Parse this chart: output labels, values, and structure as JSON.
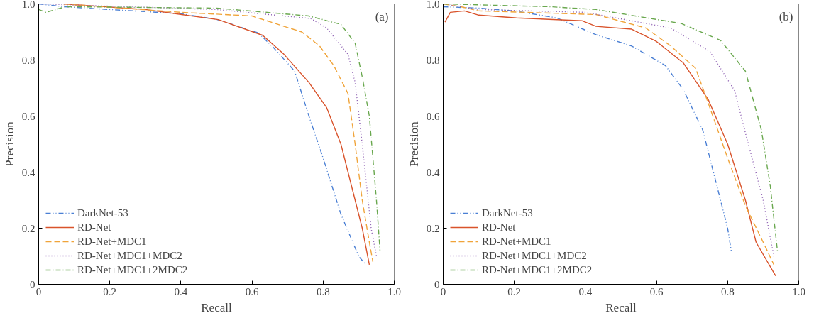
{
  "chart_data": [
    {
      "type": "line",
      "xlabel": "Recall",
      "ylabel": "Precision",
      "annotations": [
        "(a)"
      ],
      "xlim": [
        0,
        1
      ],
      "ylim": [
        0,
        1
      ],
      "xticks": [
        0,
        0.2,
        0.4,
        0.6,
        0.8,
        {
          "value": 1,
          "label": "1.0"
        }
      ],
      "yticks": [
        0,
        0.2,
        0.4,
        0.6,
        0.8,
        {
          "value": 1,
          "label": "1.0"
        }
      ],
      "grid": false,
      "legend": "bottom left",
      "series": [
        {
          "name": "DarkNet-53",
          "color": "#4a7fd4",
          "line_style": "dashdotdot",
          "x": [
            0,
            0.07,
            0.2,
            0.4,
            0.5,
            0.617,
            0.66,
            0.72,
            0.76,
            0.8,
            0.85,
            0.9,
            0.92
          ],
          "values": [
            1.0,
            0.99,
            0.98,
            0.965,
            0.945,
            0.897,
            0.845,
            0.76,
            0.6,
            0.45,
            0.25,
            0.1,
            0.07
          ]
        },
        {
          "name": "RD-Net",
          "color": "#d9532b",
          "line_style": "solid",
          "x": [
            0.07,
            0.3,
            0.505,
            0.63,
            0.69,
            0.76,
            0.81,
            0.85,
            0.88,
            0.91,
            0.93
          ],
          "values": [
            1.0,
            0.98,
            0.944,
            0.888,
            0.82,
            0.72,
            0.63,
            0.5,
            0.35,
            0.2,
            0.07
          ]
        },
        {
          "name": "RD-Net+MDC1",
          "color": "#f0a43a",
          "line_style": "dashed",
          "x": [
            0.07,
            0.4,
            0.6,
            0.69,
            0.74,
            0.79,
            0.83,
            0.87,
            0.89,
            0.91,
            0.93,
            0.94
          ],
          "values": [
            1.0,
            0.97,
            0.957,
            0.92,
            0.9,
            0.85,
            0.78,
            0.68,
            0.5,
            0.3,
            0.15,
            0.08
          ]
        },
        {
          "name": "RD-Net+MDC1+MDC2",
          "color": "#8a5bb0",
          "line_style": "dotted",
          "x": [
            0,
            0.5,
            0.765,
            0.81,
            0.87,
            0.89,
            0.91,
            0.935,
            0.95
          ],
          "values": [
            1.0,
            0.98,
            0.948,
            0.914,
            0.82,
            0.72,
            0.5,
            0.2,
            0.1
          ]
        },
        {
          "name": "RD-Net+MDC1+2MDC2",
          "color": "#6aa84f",
          "line_style": "dashdot",
          "x": [
            0,
            0.02,
            0.076,
            0.5,
            0.76,
            0.85,
            0.89,
            0.91,
            0.93,
            0.95,
            0.96
          ],
          "values": [
            0.98,
            0.97,
            0.99,
            0.985,
            0.957,
            0.927,
            0.86,
            0.74,
            0.6,
            0.3,
            0.12
          ]
        }
      ]
    },
    {
      "type": "line",
      "xlabel": "Recall",
      "ylabel": "Precision",
      "annotations": [
        "(b)"
      ],
      "xlim": [
        0,
        1
      ],
      "ylim": [
        0,
        1
      ],
      "xticks": [
        0,
        0.2,
        0.4,
        0.6,
        0.8,
        {
          "value": 1,
          "label": "1.0"
        }
      ],
      "yticks": [
        0,
        0.2,
        0.4,
        0.6,
        0.8,
        {
          "value": 1,
          "label": "1.0"
        }
      ],
      "grid": false,
      "legend": "bottom left",
      "series": [
        {
          "name": "DarkNet-53",
          "color": "#4a7fd4",
          "line_style": "dashdotdot",
          "x": [
            0,
            0.1,
            0.2,
            0.32,
            0.43,
            0.53,
            0.625,
            0.675,
            0.73,
            0.77,
            0.8,
            0.81
          ],
          "values": [
            0.99,
            0.985,
            0.975,
            0.95,
            0.89,
            0.85,
            0.78,
            0.695,
            0.55,
            0.35,
            0.2,
            0.12
          ]
        },
        {
          "name": "RD-Net",
          "color": "#d9532b",
          "line_style": "solid",
          "x": [
            0.005,
            0.02,
            0.06,
            0.1,
            0.206,
            0.39,
            0.43,
            0.53,
            0.6,
            0.675,
            0.745,
            0.8,
            0.85,
            0.88,
            0.935
          ],
          "values": [
            0.935,
            0.97,
            0.975,
            0.96,
            0.95,
            0.94,
            0.92,
            0.91,
            0.866,
            0.79,
            0.66,
            0.5,
            0.3,
            0.15,
            0.03
          ]
        },
        {
          "name": "RD-Net+MDC1",
          "color": "#f0a43a",
          "line_style": "dashed",
          "x": [
            0,
            0.05,
            0.1,
            0.43,
            0.57,
            0.64,
            0.71,
            0.75,
            0.8,
            0.85,
            0.9,
            0.93
          ],
          "values": [
            1.0,
            0.99,
            0.975,
            0.962,
            0.914,
            0.85,
            0.77,
            0.63,
            0.45,
            0.28,
            0.15,
            0.07
          ]
        },
        {
          "name": "RD-Net+MDC1+MDC2",
          "color": "#8a5bb0",
          "line_style": "dotted",
          "x": [
            0,
            0.1,
            0.4,
            0.64,
            0.75,
            0.82,
            0.85,
            0.9,
            0.93
          ],
          "values": [
            1.0,
            0.98,
            0.97,
            0.914,
            0.83,
            0.69,
            0.54,
            0.3,
            0.1
          ]
        },
        {
          "name": "RD-Net+MDC1+2MDC2",
          "color": "#6aa84f",
          "line_style": "dashdot",
          "x": [
            0,
            0.3,
            0.43,
            0.67,
            0.78,
            0.85,
            0.895,
            0.92,
            0.94
          ],
          "values": [
            1.0,
            0.99,
            0.98,
            0.93,
            0.87,
            0.76,
            0.55,
            0.35,
            0.12
          ]
        }
      ]
    }
  ]
}
